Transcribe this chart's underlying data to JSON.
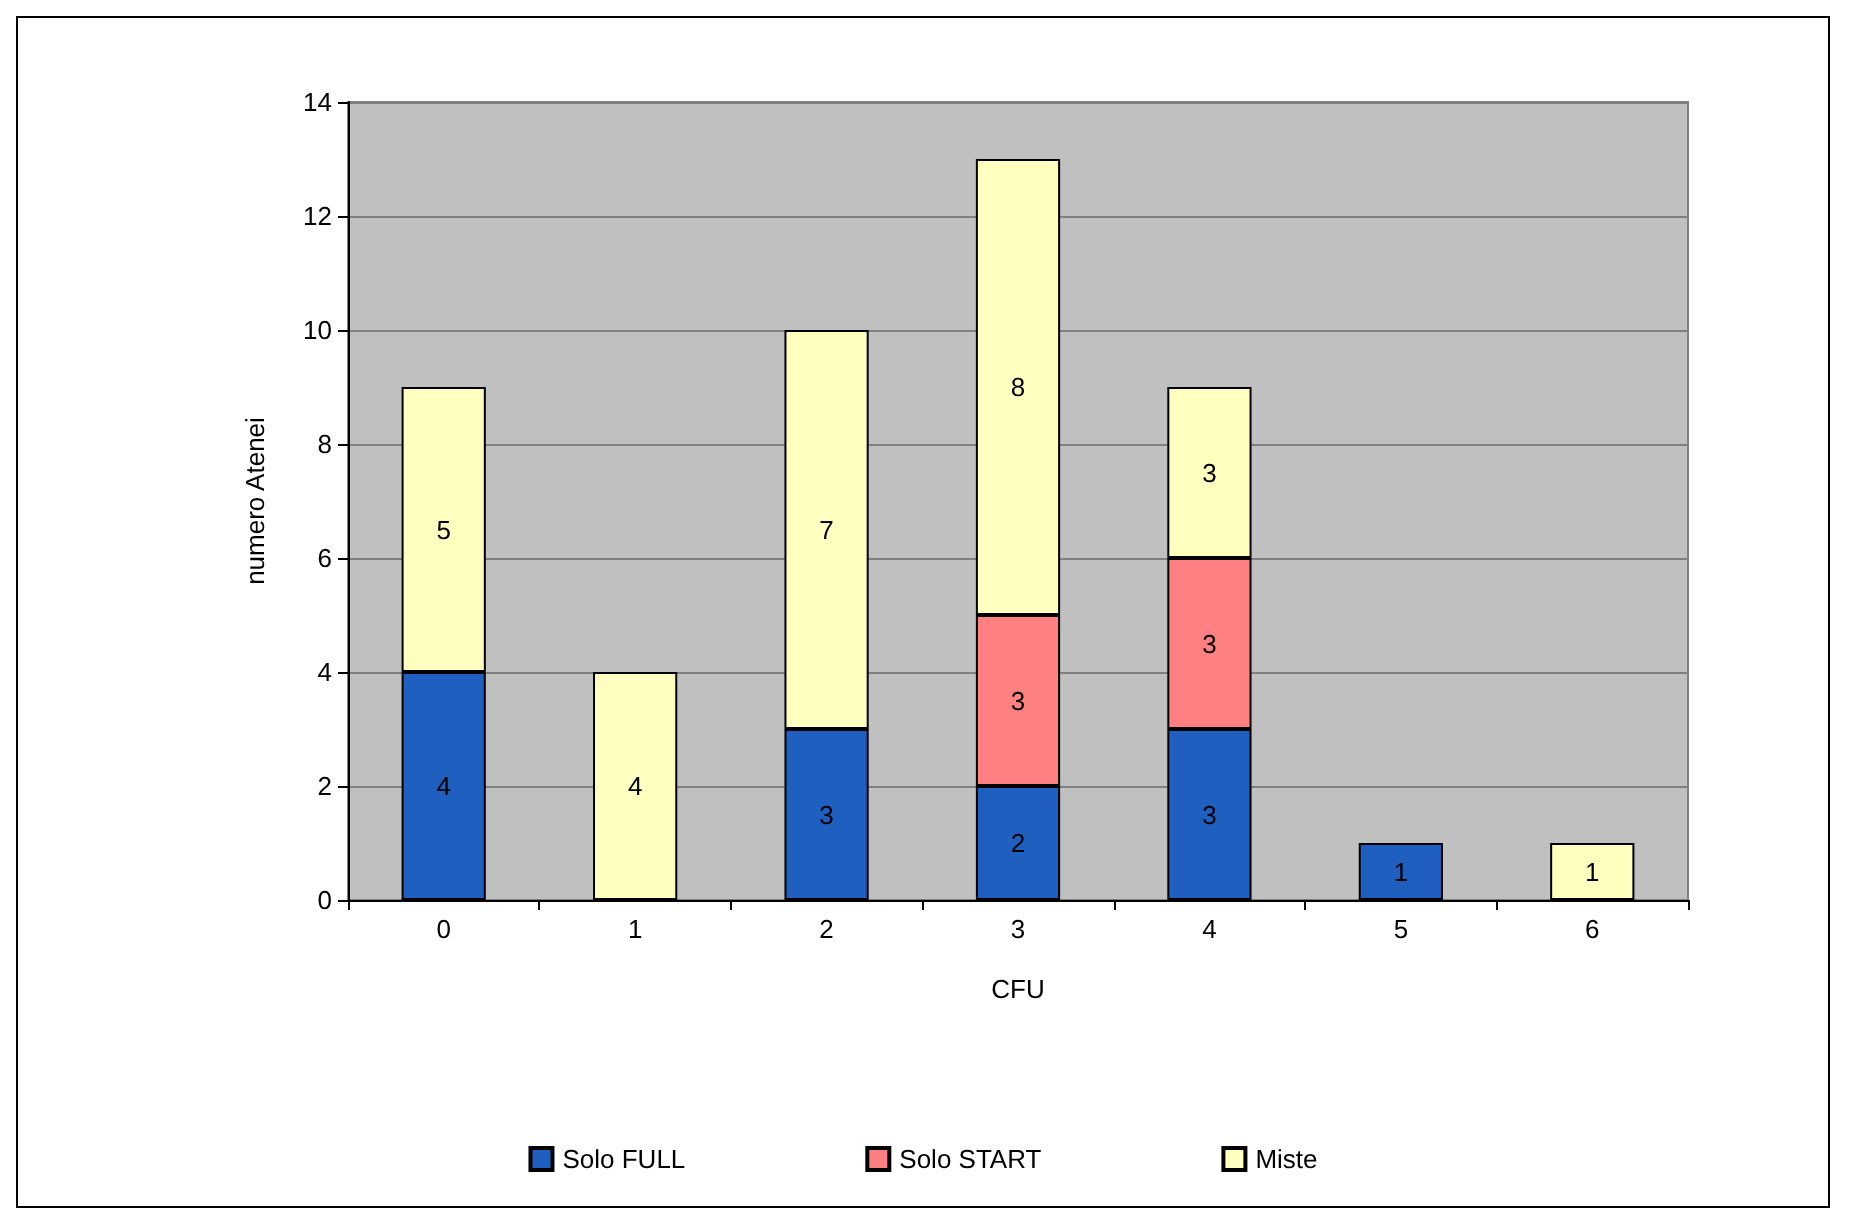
{
  "chart_data": {
    "type": "bar",
    "stacked": true,
    "xlabel": "CFU",
    "ylabel": "numero Atenei",
    "categories": [
      "0",
      "1",
      "2",
      "3",
      "4",
      "5",
      "6"
    ],
    "series": [
      {
        "name": "Solo FULL",
        "color": "#1f5fbf",
        "values": [
          4,
          null,
          3,
          2,
          3,
          1,
          null
        ]
      },
      {
        "name": "Solo START",
        "color": "#ff8080",
        "values": [
          null,
          null,
          null,
          3,
          3,
          null,
          null
        ]
      },
      {
        "name": "Miste",
        "color": "#ffffc0",
        "values": [
          5,
          4,
          7,
          8,
          3,
          null,
          1
        ]
      }
    ],
    "ylim": [
      0,
      14
    ],
    "yticks": [
      0,
      2,
      4,
      6,
      8,
      10,
      12,
      14
    ],
    "grid": "y",
    "legend": "bottom",
    "data_labels": true
  }
}
